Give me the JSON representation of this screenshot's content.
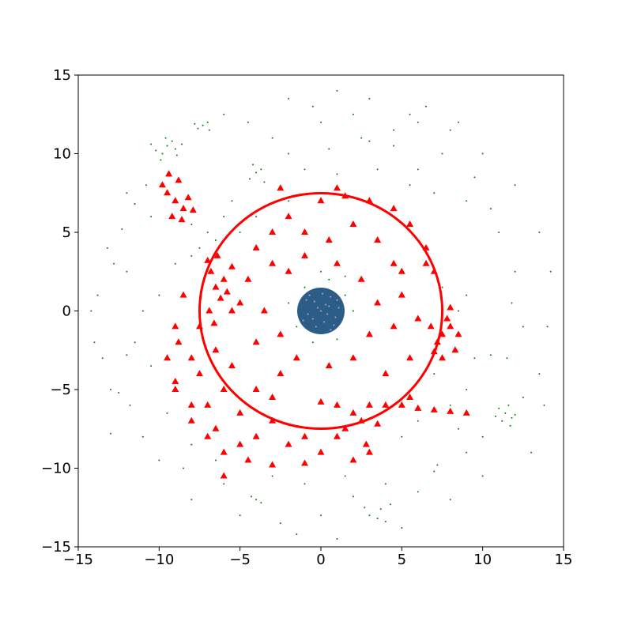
{
  "chart_data": {
    "type": "scatter",
    "xlim": [
      -15,
      15
    ],
    "ylim": [
      -15,
      15
    ],
    "xticks": [
      {
        "value": -15,
        "label": "−15"
      },
      {
        "value": -10,
        "label": "−10"
      },
      {
        "value": -5,
        "label": "−5"
      },
      0,
      5,
      10,
      15
    ],
    "yticks": [
      {
        "value": -15,
        "label": "−15"
      },
      {
        "value": -10,
        "label": "−10"
      },
      {
        "value": -5,
        "label": "−5"
      },
      0,
      5,
      10,
      15
    ],
    "grid": false,
    "series": [
      {
        "color": "#008000",
        "marker": "point",
        "x": [
          -9.5,
          -9.8,
          -9.2,
          -10.2,
          -8.9,
          -9.6,
          -10.5,
          -9.0,
          -8.6,
          -9.9,
          -7.3,
          -7.6,
          -7.0,
          -7.8,
          -6.9,
          -4.0,
          -4.4,
          -3.7,
          -4.2,
          -3.5,
          11.4,
          11.8,
          11.0,
          11.6,
          12.0,
          11.2,
          10.8,
          11.7,
          -4.0,
          -4.3,
          -3.7,
          3.5,
          3.0,
          4.0,
          3.7,
          4.3,
          2.7,
          7.0,
          7.2,
          -6.0,
          -12,
          -11.5,
          -13,
          -12.5,
          -13.8,
          -14,
          -10.5,
          -12.3,
          -11,
          -8.5,
          -6,
          -2,
          1,
          3,
          5.5,
          8,
          10,
          12,
          13.5,
          14.2,
          14,
          13.5,
          13,
          10,
          8,
          5,
          1,
          -1.5,
          -5,
          -8,
          -3,
          0,
          2.5,
          4.5,
          6,
          9,
          11,
          12,
          12.5,
          11.5,
          -2,
          0.5,
          3,
          4.5,
          6,
          7.5,
          9.5,
          10.5,
          11.8,
          10.5,
          -9,
          -10,
          -11,
          -10.5,
          -9.5,
          -8,
          -6.5,
          -3,
          -1,
          1.5,
          -7,
          -6,
          -5,
          -7.5,
          -8,
          -6.5,
          -5.5,
          -8,
          -4,
          -2,
          -1,
          0.5,
          1.5,
          -1.5,
          1,
          -0.5,
          2,
          -2,
          0,
          1.5,
          5,
          6,
          8,
          9,
          8.5,
          9.5,
          7,
          9,
          8.5,
          7.5,
          -13,
          -12.8,
          -11.8,
          -11.5,
          -13.5,
          -12,
          -10.8,
          -14.2,
          -12,
          -13.2,
          2,
          -0.5,
          -4.5,
          6.5,
          8.5,
          -1,
          1,
          3.5,
          5.5,
          7,
          4,
          2,
          0,
          -2.5,
          6,
          9,
          10,
          12.5,
          13.8,
          -10
        ],
        "values": [
          10.5,
          10.0,
          10.8,
          10.2,
          9.9,
          11.0,
          10.6,
          10.3,
          10.6,
          9.6,
          11.8,
          11.6,
          12.0,
          11.9,
          11.5,
          8.8,
          8.4,
          9.0,
          9.3,
          8.2,
          -6.5,
          -6.8,
          -6.2,
          -6.0,
          -6.6,
          -7.0,
          -6.7,
          -7.3,
          -12.0,
          -11.8,
          -12.2,
          -13.2,
          -13.0,
          -13.4,
          -12.6,
          -12.3,
          -12.5,
          -10.2,
          -9.8,
          -11.0,
          2.5,
          -2,
          -7.8,
          -5.2,
          1,
          -2,
          6,
          5.2,
          -8,
          -10,
          12.5,
          13.5,
          14,
          13.5,
          12.5,
          11.5,
          10,
          8,
          5,
          2.5,
          -1,
          -4,
          -9,
          -10.5,
          -12,
          -13.8,
          -14.5,
          -14.2,
          -13,
          -12,
          11,
          12,
          11,
          10.5,
          9,
          7,
          5,
          2.5,
          -1,
          -3,
          10,
          10.3,
          10.8,
          11.5,
          12,
          10,
          8.5,
          6.5,
          0.5,
          -2.8,
          3,
          1,
          0,
          -3.5,
          -6.5,
          -8.5,
          -9.5,
          -10.5,
          -11,
          -10.5,
          5,
          6,
          5,
          4,
          5.5,
          4.5,
          7,
          3.5,
          6,
          7,
          1.5,
          2,
          1,
          -1,
          -1.8,
          -2,
          0,
          0.5,
          2.5,
          2.2,
          -8,
          -7,
          -6,
          -5,
          -7.5,
          -3,
          -4,
          1,
          0,
          1.5,
          -5,
          3,
          -6,
          6.8,
          -3,
          7.5,
          8,
          0,
          -2.8,
          4,
          12.5,
          13,
          12,
          13,
          12,
          9,
          8.7,
          9,
          8,
          7.5,
          -11,
          -11.8,
          -13,
          -13.5,
          -11.5,
          -9,
          -8,
          -5.5,
          -6,
          -9.5
        ]
      },
      {
        "color": "#ff0000",
        "marker": "triangle",
        "x": [
          -9,
          -8.5,
          -9.5,
          -8.8,
          -9.2,
          -8.2,
          -9.8,
          -8.6,
          -7.9,
          -9.4,
          -6.5,
          -6.8,
          -6.2,
          -6.9,
          -6,
          -7,
          -5.8,
          -6.4,
          -6.6,
          -5.5,
          7.5,
          8,
          7.2,
          8.3,
          7.8,
          6.8,
          8.5,
          7.5,
          8,
          7,
          2,
          1,
          3,
          2.5,
          0,
          1.5,
          3.5,
          2.8,
          4,
          1,
          5,
          6,
          7,
          8,
          9,
          5.5,
          3,
          2,
          0,
          -1,
          -3,
          -4,
          -5,
          -6,
          -7,
          -8,
          -9,
          -9.5,
          -9,
          -8.5,
          -7,
          -6,
          -5,
          -7.5,
          -8,
          -6.5,
          -7.5,
          -5.5,
          -4,
          -3,
          -4,
          -3,
          -2,
          0,
          1.5,
          3,
          4.5,
          5.5,
          6.5,
          7,
          -2,
          -1,
          1,
          2.5,
          3.5,
          3,
          2,
          0.5,
          -1.5,
          -2.5,
          -4.5,
          -3.5,
          -4,
          -5,
          -3,
          4.5,
          5,
          4.5,
          5.5,
          4,
          -9,
          -8,
          -6.5,
          -4.5,
          -3,
          -6,
          -2,
          -1,
          -5.5,
          -2.5,
          -1,
          0.5,
          2,
          3.5,
          5,
          6,
          -2.5,
          1,
          6.5,
          -8.8
        ],
        "values": [
          7,
          6.5,
          7.5,
          8.3,
          6,
          7.2,
          8,
          5.8,
          6.4,
          8.7,
          1.5,
          2.5,
          0.8,
          0,
          2,
          3.2,
          1.2,
          3.5,
          -0.8,
          2.8,
          -1.5,
          -1,
          -2,
          -2.5,
          -0.5,
          -1,
          -1.5,
          -3,
          0.2,
          -2.6,
          -6.5,
          -6,
          -6,
          -7,
          -5.8,
          -7.5,
          -7.2,
          -8.5,
          -6,
          -8,
          -6,
          -6.2,
          -6.3,
          -6.4,
          -6.5,
          -5.5,
          -9,
          -9.5,
          -9,
          -8,
          -7,
          -8,
          -8.5,
          -9,
          -8,
          -6,
          -5,
          -3,
          -1,
          1,
          -6,
          -5,
          -6.5,
          -4,
          -3,
          -2.5,
          -1,
          -3.5,
          -5,
          -5.5,
          4,
          5,
          6,
          7,
          7.3,
          7,
          6.5,
          5.5,
          4,
          2.5,
          2.5,
          3.5,
          3,
          2,
          0.5,
          -1.5,
          -3,
          -3.5,
          -3,
          -1.5,
          2,
          0,
          -2,
          0.5,
          3,
          3,
          1,
          -1,
          -3,
          -4,
          -4.5,
          -7,
          -7.5,
          -9.5,
          -9.8,
          -10.5,
          -8.5,
          -9.7,
          0,
          -4,
          5,
          4.5,
          5.5,
          4.5,
          2.5,
          -0.5,
          7.8,
          7.8,
          3,
          -2
        ]
      },
      {
        "color": "#c9a0dc",
        "marker": "point",
        "x": [
          0,
          0.5,
          -0.4,
          0.2,
          -0.8,
          0.9,
          -0.3,
          0.6,
          -0.9,
          1.1,
          0.3,
          -0.5,
          0.8,
          -1.1,
          0.1,
          -0.2,
          0.4,
          1,
          -0.7,
          0.6
        ],
        "values": [
          0,
          0.3,
          0.6,
          -0.7,
          -0.2,
          -0.4,
          -1,
          0.9,
          0.7,
          0.2,
          0.4,
          -0.5,
          -0.9,
          -0.6,
          1.1,
          0.2,
          -0.2,
          0.7,
          1,
          -1.2
        ]
      }
    ]
  }
}
